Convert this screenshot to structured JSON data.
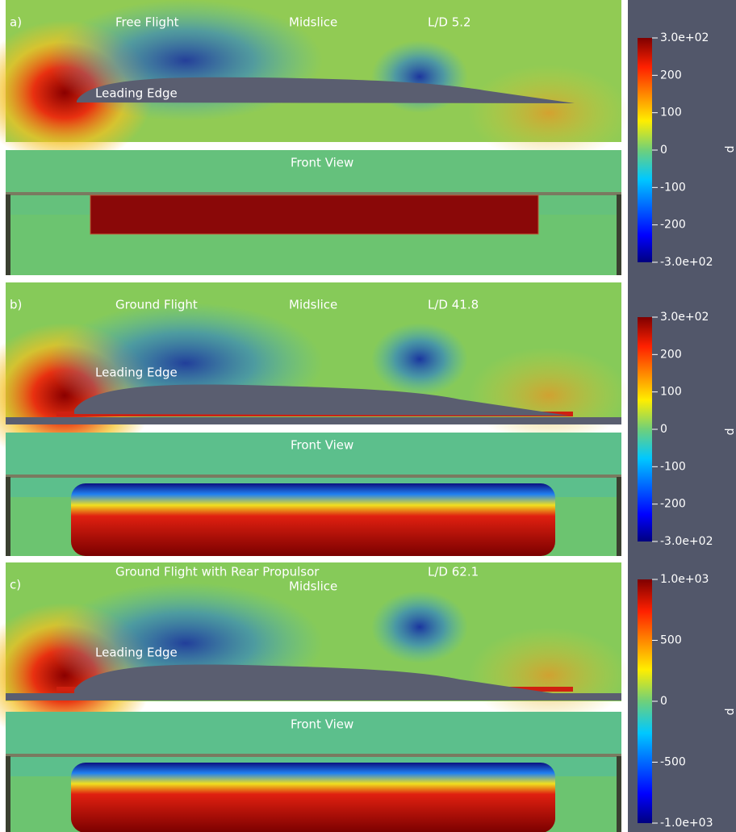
{
  "panels": [
    {
      "label": "a)",
      "title": "Free Flight",
      "view": "Midslice",
      "ratio": "L/D 5.2",
      "annotation": "Leading Edge",
      "front_title": "Front View",
      "colorbar": {
        "lim": [
          -300,
          300
        ],
        "ticks": [
          {
            "value": 300,
            "label": "3.0e+02"
          },
          200,
          100,
          0,
          -100,
          -200,
          {
            "value": -300,
            "label": "-3.0e+02"
          }
        ],
        "axis_label": "p"
      }
    },
    {
      "label": "b)",
      "title": "Ground Flight",
      "view": "Midslice",
      "ratio": "L/D 41.8",
      "annotation": "Leading Edge",
      "front_title": "Front View",
      "colorbar": {
        "lim": [
          -300,
          300
        ],
        "ticks": [
          {
            "value": 300,
            "label": "3.0e+02"
          },
          200,
          100,
          0,
          -100,
          -200,
          {
            "value": -300,
            "label": "-3.0e+02"
          }
        ],
        "axis_label": "p"
      }
    },
    {
      "label": "c)",
      "title": "Ground Flight with Rear Propulsor",
      "view": "Midslice",
      "ratio": "L/D 62.1",
      "annotation": "Leading Edge",
      "front_title": "Front View",
      "colorbar": {
        "lim": [
          -1000,
          1000
        ],
        "ticks": [
          {
            "value": 1000,
            "label": "1.0e+03"
          },
          500,
          0,
          -500,
          {
            "value": -1000,
            "label": "-1.0e+03"
          }
        ],
        "axis_label": "p"
      }
    }
  ]
}
